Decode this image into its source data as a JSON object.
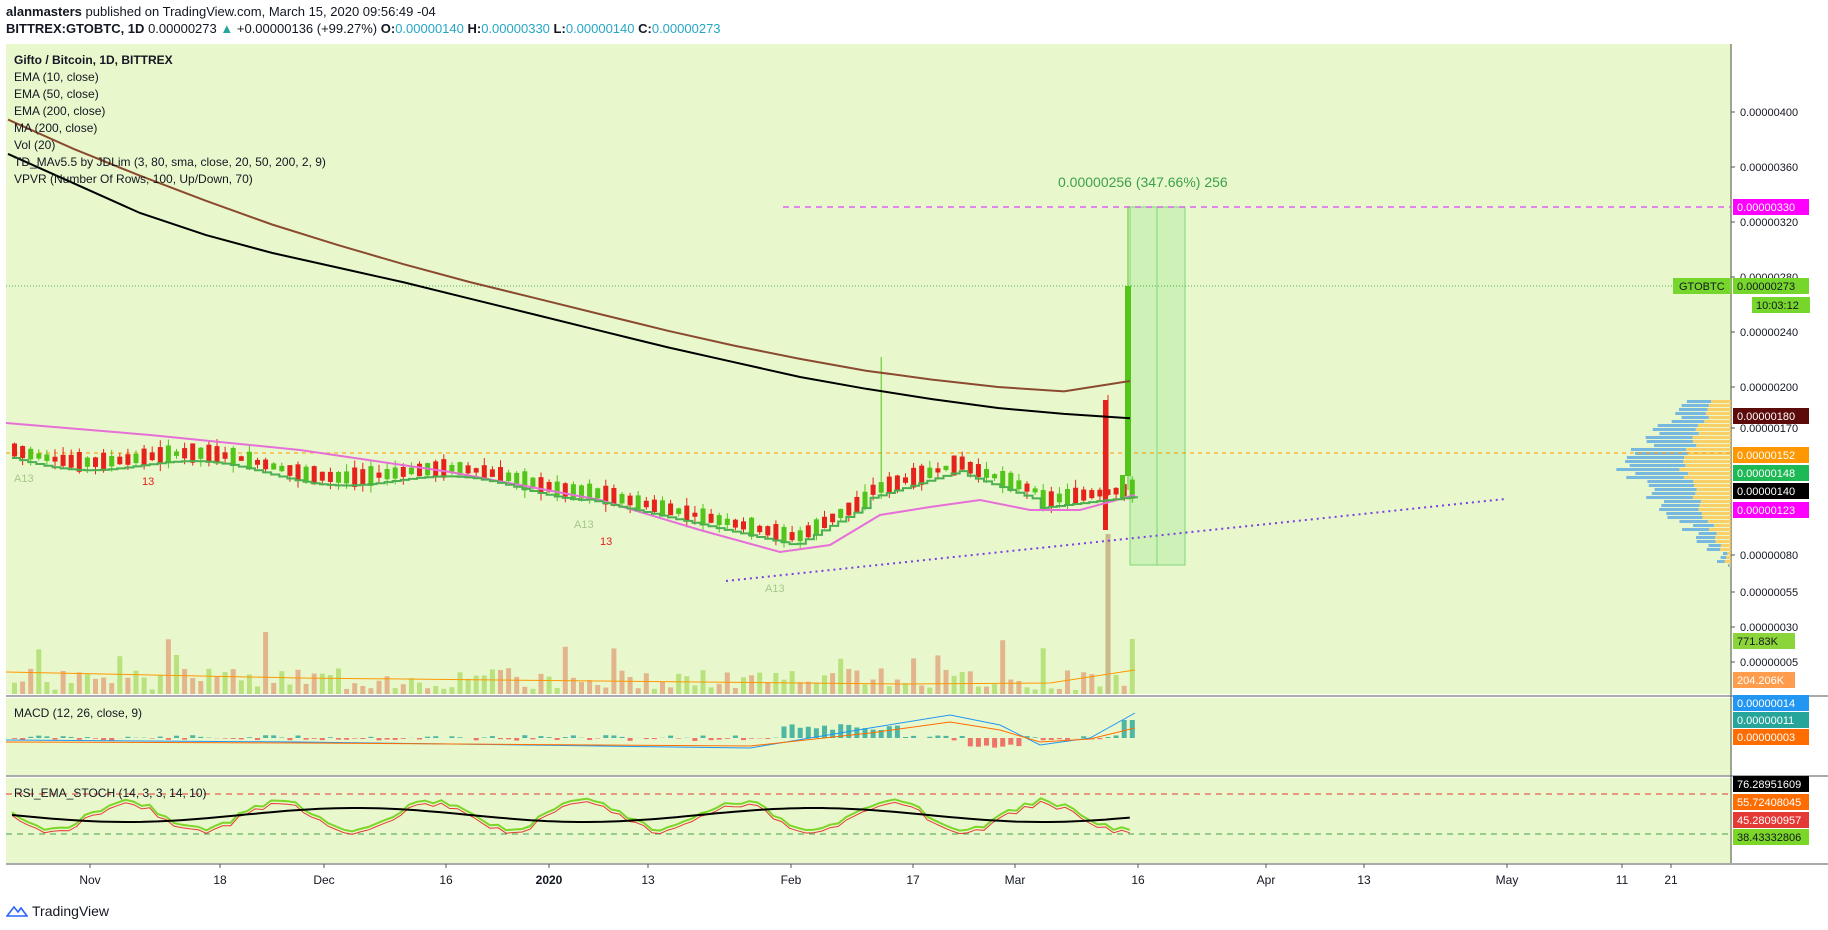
{
  "header": {
    "publisher": "alanmasters",
    "published_text": "published on TradingView.com, March 15, 2020 09:56:49 -04",
    "symbol": "BITTREX:GTOBTC, 1D",
    "last": "0.00000273",
    "change": "+0.00000136 (+99.27%)",
    "open_label": "O:",
    "open": "0.00000140",
    "high_label": "H:",
    "high": "0.00000330",
    "low_label": "L:",
    "low": "0.00000140",
    "close_label": "C:",
    "close": "0.00000273"
  },
  "legend": [
    "Gifto / Bitcoin, 1D, BITTREX",
    "EMA (10, close)",
    "EMA (50, close)",
    "EMA (200, close)",
    "MA (200, close)",
    "Vol (20)",
    "TD_MAv5.5 by JDLim (3, 80, sma, close, 20, 50, 200, 2, 9)",
    "VPVR (Number Of Rows, 100, Up/Down, 70)"
  ],
  "macd_label": "MACD (12, 26, close, 9)",
  "rsi_label": "RSI_EMA_STOCH (14, 3, 3, 14, 10)",
  "footer": {
    "brand": "TradingView"
  },
  "colors": {
    "bg": "#e8f8cc",
    "up": "#53c41a",
    "down": "#e5231c",
    "ema200": "#000000",
    "ma200": "#8b4a2f",
    "ema50": "#e66fd8",
    "td_line": "#4caf50",
    "magenta": "#ff00ff",
    "orange": "#ff8c1a"
  },
  "chart_data": [
    {
      "type": "line",
      "panel": "price",
      "ylim": [
        0.0,
        4.4e-06
      ],
      "y_ticks": [
        "0.00000400",
        "0.00000360",
        "0.00000320",
        "0.00000280",
        "0.00000240",
        "0.00000200",
        "0.00000170",
        "0.00000080",
        "0.00000055",
        "0.00000030",
        "0.00000005"
      ],
      "x_ticks": [
        "Nov",
        "18",
        "Dec",
        "16",
        "2020",
        "13",
        "Feb",
        "17",
        "Mar",
        "16",
        "Apr",
        "13",
        "May",
        "11",
        "21"
      ],
      "price_labels": [
        {
          "text": "0.00000330",
          "color": "#ff00ff"
        },
        {
          "text": "0.00000273",
          "color": "#76d62b",
          "tag": "GTOBTC",
          "countdown": "10:03:12"
        },
        {
          "text": "0.00000180",
          "color": "#5c0a0a"
        },
        {
          "text": "0.00000152",
          "color": "#ff9800"
        },
        {
          "text": "0.00000148",
          "color": "#1db954"
        },
        {
          "text": "0.00000140",
          "color": "#000000"
        },
        {
          "text": "0.00000123",
          "color": "#ff00ff"
        },
        {
          "text": "771.83K",
          "color": "#8bd43a"
        },
        {
          "text": "204.206K",
          "color": "#ff9d4d"
        }
      ],
      "measure_label": "0.00000256 (347.66%) 256",
      "annotations": [
        "A13",
        "13",
        "A13",
        "13",
        "A13"
      ],
      "series": [
        {
          "name": "EMA (200, close)",
          "values": [
            3.25,
            3.05,
            2.85,
            2.7,
            2.58,
            2.48,
            2.38,
            2.27,
            2.16,
            2.05,
            1.94,
            1.84,
            1.74,
            1.66,
            1.59,
            1.53,
            1.49,
            1.46
          ]
        },
        {
          "name": "MA (200, close)",
          "values": [
            3.55,
            3.35,
            3.17,
            3.0,
            2.84,
            2.7,
            2.57,
            2.45,
            2.34,
            2.23,
            2.12,
            2.02,
            1.93,
            1.85,
            1.79,
            1.74,
            1.71,
            1.78
          ]
        }
      ]
    },
    {
      "type": "bar",
      "panel": "macd",
      "values_label": [
        "0.00000014",
        "0.00000011",
        "0.00000003"
      ]
    },
    {
      "type": "line",
      "panel": "rsi",
      "values_label": [
        "76.28951609",
        "55.72408045",
        "45.28090957",
        "38.43332806"
      ]
    }
  ]
}
